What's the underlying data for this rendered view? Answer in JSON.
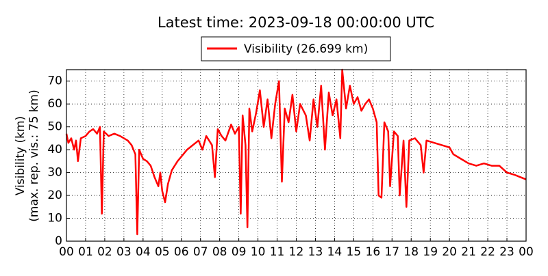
{
  "chart_data": {
    "type": "line",
    "title": "Latest time: 2023-09-18 00:00:00 UTC",
    "y_label": [
      "Visibility (km)",
      "(max. rep. vis.: 75 km)"
    ],
    "series": [
      {
        "name": "Visibility (26.699 km)",
        "color": "#ff0000",
        "x": [
          0,
          0.1,
          0.25,
          0.4,
          0.5,
          0.6,
          0.75,
          1.0,
          1.2,
          1.4,
          1.6,
          1.75,
          1.85,
          1.95,
          2.2,
          2.5,
          2.8,
          3.0,
          3.2,
          3.4,
          3.6,
          3.7,
          3.8,
          4.0,
          4.2,
          4.4,
          4.6,
          4.8,
          4.9,
          5.0,
          5.15,
          5.3,
          5.5,
          5.8,
          6.0,
          6.3,
          6.6,
          6.9,
          7.1,
          7.3,
          7.6,
          7.75,
          7.9,
          8.1,
          8.3,
          8.6,
          8.8,
          9.0,
          9.1,
          9.2,
          9.35,
          9.45,
          9.55,
          9.7,
          9.9,
          10.1,
          10.3,
          10.5,
          10.7,
          10.9,
          11.1,
          11.25,
          11.4,
          11.6,
          11.8,
          12.0,
          12.2,
          12.5,
          12.7,
          12.9,
          13.1,
          13.3,
          13.5,
          13.7,
          13.9,
          14.1,
          14.3,
          14.4,
          14.6,
          14.8,
          15.0,
          15.2,
          15.4,
          15.6,
          15.8,
          16.0,
          16.2,
          16.3,
          16.45,
          16.6,
          16.8,
          16.9,
          17.1,
          17.3,
          17.4,
          17.6,
          17.75,
          17.9,
          18.2,
          18.5,
          18.65,
          18.8,
          19.2,
          19.6,
          20.0,
          20.2,
          20.6,
          21.0,
          21.4,
          21.8,
          22.2,
          22.6,
          23.0,
          23.4,
          23.7,
          24.0
        ],
        "values": [
          47,
          43,
          45,
          40,
          44,
          35,
          45,
          46,
          48,
          49,
          47,
          50,
          12,
          48,
          46,
          47,
          46,
          45,
          44,
          42,
          38,
          3,
          40,
          36,
          35,
          33,
          28,
          24,
          30,
          22,
          17,
          25,
          31,
          35,
          37,
          40,
          42,
          44,
          40,
          46,
          42,
          28,
          49,
          46,
          44,
          51,
          47,
          50,
          12,
          55,
          42,
          6,
          58,
          48,
          56,
          66,
          50,
          62,
          45,
          60,
          70,
          26,
          58,
          52,
          64,
          48,
          60,
          55,
          44,
          62,
          50,
          68,
          40,
          65,
          55,
          62,
          45,
          75,
          58,
          68,
          60,
          63,
          57,
          60,
          62,
          58,
          52,
          20,
          19,
          52,
          48,
          24,
          48,
          46,
          20,
          44,
          15,
          44,
          45,
          42,
          30,
          44,
          43,
          42,
          41,
          38,
          36,
          34,
          33,
          34,
          33,
          33,
          30,
          29,
          28,
          27
        ]
      }
    ],
    "xlim": [
      0,
      24
    ],
    "xticks": [
      {
        "value": 0,
        "label": "00"
      },
      {
        "value": 1,
        "label": "01"
      },
      {
        "value": 2,
        "label": "02"
      },
      {
        "value": 3,
        "label": "03"
      },
      {
        "value": 4,
        "label": "04"
      },
      {
        "value": 5,
        "label": "05"
      },
      {
        "value": 6,
        "label": "06"
      },
      {
        "value": 7,
        "label": "07"
      },
      {
        "value": 8,
        "label": "08"
      },
      {
        "value": 9,
        "label": "09"
      },
      10,
      11,
      12,
      13,
      14,
      15,
      16,
      17,
      18,
      19,
      20,
      21,
      22,
      23,
      {
        "value": 24,
        "label": "00"
      }
    ],
    "ylim": [
      0,
      75
    ],
    "yticks": [
      0,
      10,
      20,
      30,
      40,
      50,
      60,
      70
    ],
    "grid": true
  }
}
